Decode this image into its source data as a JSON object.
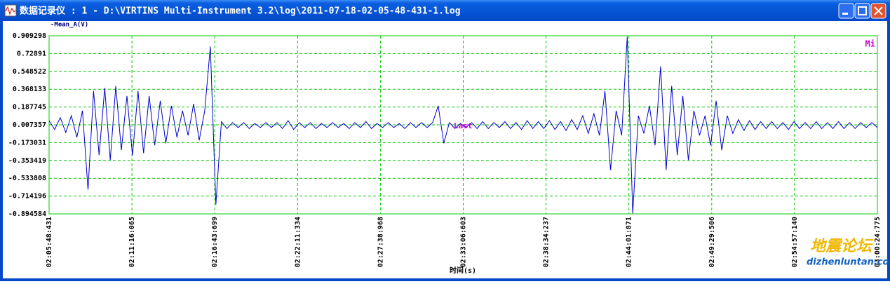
{
  "window": {
    "title": "数据记录仪 : 1 - D:\\VIRTINS Multi-Instrument 3.2\\log\\2011-07-18-02-05-48-431-1.log"
  },
  "watermark": {
    "cn": "地震论坛",
    "url": "dizhenluntan.com"
  },
  "chart_data": {
    "type": "line",
    "legend_label": "-Mean_A(V)",
    "x_label": "时间(s)",
    "marker_top": "Mi",
    "marker_mid": "Last",
    "xtick_labels": [
      "02:05:48:431",
      "02:11:16:065",
      "02:16:43:699",
      "02:22:11:334",
      "02:27:38:968",
      "02:33:06:603",
      "02:38:34:237",
      "02:44:01:871",
      "02:49:29:506",
      "02:54:57:140",
      "03:00:24:775"
    ],
    "ylim": [
      -0.894584,
      0.909298
    ],
    "yticks": [
      0.909298,
      0.72891,
      0.548522,
      0.368133,
      0.187745,
      0.007357,
      -0.173031,
      -0.353419,
      -0.533808,
      -0.714196,
      -0.894584
    ],
    "grid": true,
    "series": [
      {
        "name": "Mean_A",
        "color": "#0000cc",
        "values": [
          0.05,
          -0.04,
          0.08,
          -0.07,
          0.1,
          -0.12,
          0.15,
          -0.65,
          0.35,
          -0.3,
          0.38,
          -0.35,
          0.4,
          -0.25,
          0.3,
          -0.3,
          0.35,
          -0.28,
          0.3,
          -0.2,
          0.25,
          -0.18,
          0.2,
          -0.12,
          0.15,
          -0.1,
          0.22,
          -0.15,
          0.15,
          0.8,
          -0.8,
          0.04,
          -0.03,
          0.03,
          -0.02,
          0.03,
          -0.03,
          0.02,
          -0.02,
          0.03,
          -0.02,
          0.03,
          -0.03,
          0.05,
          -0.04,
          0.03,
          -0.02,
          0.03,
          -0.03,
          0.02,
          -0.02,
          0.03,
          -0.02,
          0.02,
          -0.03,
          0.03,
          -0.02,
          0.04,
          -0.03,
          0.02,
          -0.02,
          0.03,
          -0.02,
          0.02,
          -0.03,
          0.03,
          -0.02,
          0.03,
          -0.02,
          0.03,
          0.2,
          -0.18,
          0.03,
          -0.03,
          0.02,
          -0.02,
          0.03,
          -0.03,
          0.04,
          -0.03,
          0.03,
          -0.02,
          0.04,
          -0.03,
          0.03,
          -0.04,
          0.05,
          -0.03,
          0.04,
          -0.03,
          0.05,
          -0.04,
          0.04,
          -0.05,
          0.06,
          -0.04,
          0.1,
          -0.08,
          0.12,
          -0.1,
          0.35,
          -0.45,
          0.15,
          -0.1,
          0.9,
          -0.89,
          0.1,
          -0.08,
          0.2,
          -0.2,
          0.6,
          -0.45,
          0.4,
          -0.3,
          0.3,
          -0.35,
          0.15,
          -0.1,
          0.1,
          -0.2,
          0.25,
          -0.25,
          0.1,
          -0.08,
          0.06,
          -0.05,
          0.05,
          -0.04,
          0.04,
          -0.03,
          0.04,
          -0.03,
          0.03,
          -0.04,
          0.04,
          -0.03,
          0.03,
          -0.03,
          0.04,
          -0.03,
          0.03,
          -0.03,
          0.04,
          -0.03,
          0.03,
          -0.03,
          0.03,
          -0.02,
          0.03,
          -0.02
        ]
      }
    ]
  }
}
